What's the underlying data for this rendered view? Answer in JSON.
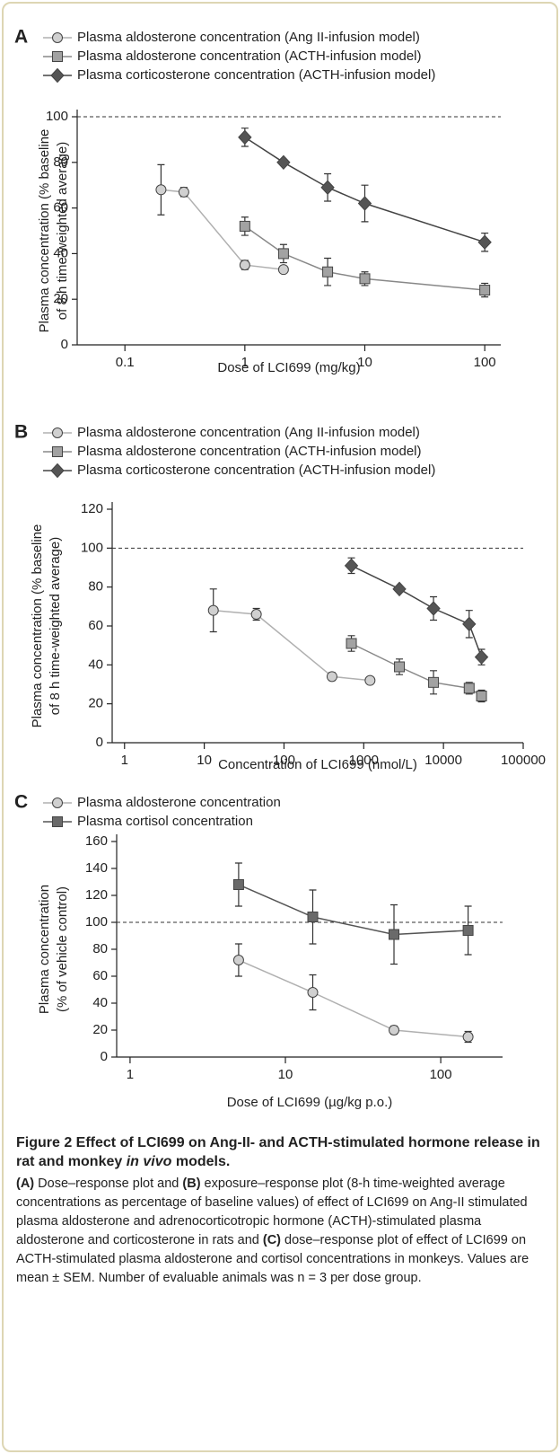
{
  "chart_data": [
    {
      "type": "line",
      "panel": "A",
      "xscale": "log",
      "xlim": [
        0.04,
        136
      ],
      "xticks": [
        0.1,
        1,
        10,
        100
      ],
      "ylim": [
        0,
        100
      ],
      "yticks": [
        0,
        20,
        40,
        60,
        80,
        100
      ],
      "reference_line": 100,
      "xlabel": "Dose of LCI699 (mg/kg)",
      "ylabel": [
        "Plasma concentration (% baseline",
        "of 8 h time-weighted average)"
      ],
      "series": [
        {
          "name": "Plasma aldosterone concentration (Ang II-infusion model)",
          "marker": "circle",
          "color": "#b0b0b0",
          "fill": "#d0d0d0",
          "x": [
            0.2,
            0.31,
            1,
            2.1
          ],
          "values": [
            68,
            67,
            35,
            33
          ],
          "errors": [
            11,
            2,
            2,
            1
          ]
        },
        {
          "name": "Plasma aldosterone concentration (ACTH-infusion model)",
          "marker": "square",
          "color": "#888888",
          "fill": "#a2a2a2",
          "x": [
            1,
            2.1,
            4.9,
            10,
            100
          ],
          "values": [
            52,
            40,
            32,
            29,
            24
          ],
          "errors": [
            4,
            4,
            6,
            3,
            3
          ]
        },
        {
          "name": "Plasma corticosterone concentration (ACTH-infusion model)",
          "marker": "diamond",
          "color": "#444444",
          "fill": "#555555",
          "x": [
            1,
            2.1,
            4.9,
            10,
            100
          ],
          "values": [
            91,
            80,
            69,
            62,
            45
          ],
          "errors": [
            4,
            1,
            6,
            8,
            4
          ]
        }
      ]
    },
    {
      "type": "line",
      "panel": "B",
      "xscale": "log",
      "xlim": [
        0.7,
        100000
      ],
      "xticks": [
        1,
        10,
        100,
        1000,
        10000,
        100000
      ],
      "ylim": [
        0,
        120
      ],
      "yticks": [
        0,
        20,
        40,
        60,
        80,
        100,
        120
      ],
      "reference_line": 100,
      "xlabel": "Concentration of LCI699 (nmol/L)",
      "ylabel": [
        "Plasma concentration (% baseline",
        "of 8 h time-weighted average)"
      ],
      "series": [
        {
          "name": "Plasma aldosterone concentration (Ang II-infusion model)",
          "marker": "circle",
          "color": "#b0b0b0",
          "fill": "#d0d0d0",
          "x": [
            13,
            45,
            400,
            1200
          ],
          "values": [
            68,
            66,
            34,
            32
          ],
          "errors": [
            11,
            3,
            2,
            0
          ]
        },
        {
          "name": "Plasma aldosterone concentration (ACTH-infusion model)",
          "marker": "square",
          "color": "#888888",
          "fill": "#a2a2a2",
          "x": [
            700,
            2800,
            7500,
            21000,
            30000
          ],
          "values": [
            51,
            39,
            31,
            28,
            24
          ],
          "errors": [
            4,
            4,
            6,
            3,
            3
          ]
        },
        {
          "name": "Plasma corticosterone concentration (ACTH-infusion model)",
          "marker": "diamond",
          "color": "#444444",
          "fill": "#555555",
          "x": [
            700,
            2800,
            7500,
            21000,
            30000
          ],
          "values": [
            91,
            79,
            69,
            61,
            44
          ],
          "errors": [
            4,
            1,
            6,
            7,
            4
          ]
        }
      ]
    },
    {
      "type": "line",
      "panel": "C",
      "xscale": "log",
      "xlim": [
        0.82,
        250
      ],
      "xticks": [
        1,
        10,
        100
      ],
      "ylim": [
        0,
        160
      ],
      "yticks": [
        0,
        20,
        40,
        60,
        80,
        100,
        120,
        140,
        160
      ],
      "reference_line": 100,
      "xlabel": "Dose of LCI699 (µg/kg p.o.)",
      "ylabel": [
        "Plasma concentration",
        "(% of vehicle control)"
      ],
      "series": [
        {
          "name": "Plasma aldosterone concentration",
          "marker": "circle",
          "color": "#b0b0b0",
          "fill": "#d0d0d0",
          "x": [
            5,
            15,
            50,
            150
          ],
          "values": [
            72,
            48,
            20,
            15
          ],
          "errors": [
            12,
            13,
            3,
            4
          ]
        },
        {
          "name": "Plasma cortisol concentration",
          "marker": "square",
          "color": "#555555",
          "fill": "#6a6a6a",
          "x": [
            5,
            15,
            50,
            150
          ],
          "values": [
            128,
            104,
            91,
            94
          ],
          "errors": [
            16,
            20,
            22,
            18
          ]
        }
      ]
    }
  ],
  "caption": {
    "title": [
      {
        "text": "Figure 2 Effect of LCI699 on Ang-II- and ACTH-stimulated hormone release in rat and monkey ",
        "italic": false
      },
      {
        "text": "in vivo",
        "italic": true
      },
      {
        "text": " models.",
        "italic": false
      }
    ],
    "body": [
      {
        "text": "(A)",
        "bold": true
      },
      {
        "text": " Dose–response plot and ",
        "bold": false
      },
      {
        "text": "(B)",
        "bold": true
      },
      {
        "text": " exposure–response plot (8-h time-weighted average concentrations as percentage of baseline values) of effect of LCI699 on Ang-II stimulated plasma aldosterone and adrenocorticotropic hormone (ACTH)-stimulated plasma aldosterone and corticosterone in rats and ",
        "bold": false
      },
      {
        "text": "(C)",
        "bold": true
      },
      {
        "text": " dose–response plot of effect of LCI699 on ACTH-stimulated plasma aldosterone and cortisol concentrations in monkeys. Values are mean ± SEM. Number of evaluable animals was n = 3 per dose group.",
        "bold": false
      }
    ]
  }
}
